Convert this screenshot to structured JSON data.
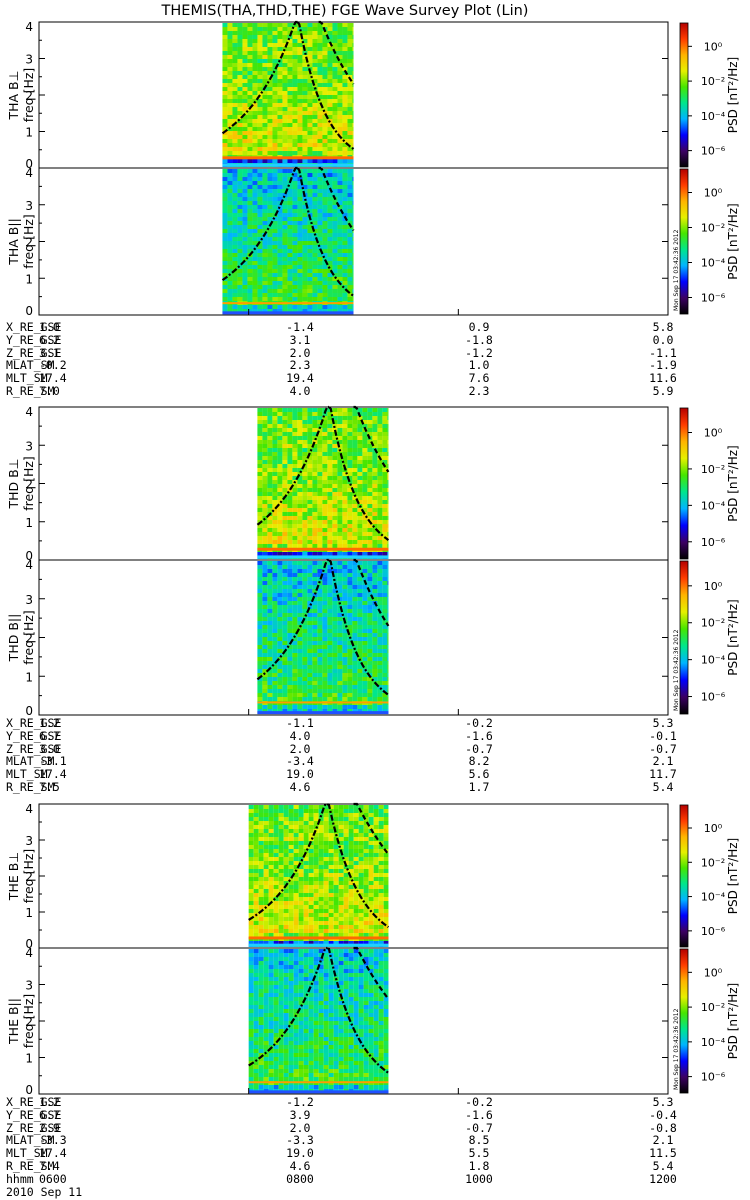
{
  "title": "THEMIS(THA,THD,THE) FGE Wave Survey Plot (Lin)",
  "colorbar": {
    "label": "PSD [nT²/Hz]",
    "ticks": [
      "10⁰",
      "10⁻²",
      "10⁻⁴",
      "10⁻⁶"
    ],
    "scale": "log",
    "range": [
      -7,
      1.4
    ],
    "colors": [
      "#000000",
      "#3c0064",
      "#0000ff",
      "#00b4ff",
      "#00e68c",
      "#46e600",
      "#e6f000",
      "#ffb400",
      "#ff3c00",
      "#b40000"
    ]
  },
  "timestamp": "Mon Sep 17 03:42:36 2012",
  "time_axis": {
    "label": "hhmm",
    "date": "2010 Sep 11",
    "ticks": [
      "0600",
      "0800",
      "1000",
      "1200"
    ]
  },
  "ephemeris_labels": [
    "X_RE_GSE",
    "Y_RE_GSE",
    "Z_RE_GSE",
    "MLAT_SM",
    "MLT_SM",
    "R_RE_SM"
  ],
  "probes": [
    {
      "name": "THA",
      "panels": [
        "THA B⊥",
        "THA B||"
      ],
      "ephemeris": [
        [
          "1.0",
          "-1.4",
          "0.9",
          "5.8"
        ],
        [
          "6.2",
          "3.1",
          "-1.8",
          "0.0"
        ],
        [
          "3.1",
          "2.0",
          "-1.2",
          "-1.1"
        ],
        [
          "-0.2",
          "2.3",
          "1.0",
          "-1.9"
        ],
        [
          "17.4",
          "19.4",
          "7.6",
          "11.6"
        ],
        [
          "7.0",
          "4.0",
          "2.3",
          "5.9"
        ]
      ]
    },
    {
      "name": "THD",
      "panels": [
        "THD B⊥",
        "THD B||"
      ],
      "ephemeris": [
        [
          "1.2",
          "-1.1",
          "-0.2",
          "5.3"
        ],
        [
          "6.7",
          "4.0",
          "-1.6",
          "-0.1"
        ],
        [
          "3.0",
          "2.0",
          "-0.7",
          "-0.7"
        ],
        [
          "-3.1",
          "-3.4",
          "8.2",
          "2.1"
        ],
        [
          "17.4",
          "19.0",
          "5.6",
          "11.7"
        ],
        [
          "7.5",
          "4.6",
          "1.7",
          "5.4"
        ]
      ]
    },
    {
      "name": "THE",
      "panels": [
        "THE B⊥",
        "THE B||"
      ],
      "ephemeris": [
        [
          "1.2",
          "-1.2",
          "-0.2",
          "5.3"
        ],
        [
          "6.7",
          "3.9",
          "-1.6",
          "-0.4"
        ],
        [
          "2.9",
          "2.0",
          "-0.7",
          "-0.8"
        ],
        [
          "-3.3",
          "-3.3",
          "8.5",
          "2.1"
        ],
        [
          "17.4",
          "19.0",
          "5.5",
          "11.5"
        ],
        [
          "7.4",
          "4.6",
          "1.8",
          "5.4"
        ]
      ]
    }
  ],
  "chart_data": {
    "type": "heatmap",
    "title": "THEMIS(THA,THD,THE) FGE Wave Survey Plot (Lin)",
    "xlabel": "hhmm",
    "xticks": [
      "0600",
      "0800",
      "1000",
      "1200"
    ],
    "xlim": [
      "0600",
      "1200"
    ],
    "ylabel": "freq [Hz]",
    "ylim": [
      0,
      4
    ],
    "yticks": [
      0,
      1,
      2,
      3,
      4
    ],
    "zlabel": "PSD [nT²/Hz]",
    "zscale": "log",
    "zlim": [
      1e-07,
      25
    ],
    "panels": [
      {
        "name": "THA B⊥",
        "data_start": "0745",
        "data_end": "0900",
        "line_fc_start_hz": 0.95,
        "line_fc_end_hz": 0.52,
        "line_cusp": "0828",
        "line2_fc_start_hz": 2.3
      },
      {
        "name": "THA B||",
        "data_start": "0745",
        "data_end": "0900",
        "line_fc_start_hz": 0.95,
        "line_fc_end_hz": 0.52,
        "line_cusp": "0828",
        "line2_fc_start_hz": 2.3
      },
      {
        "name": "THD B⊥",
        "data_start": "0805",
        "data_end": "0920",
        "line_fc_start_hz": 0.92,
        "line_fc_end_hz": 0.52,
        "line_cusp": "0846",
        "line2_fc_start_hz": 2.3
      },
      {
        "name": "THD B||",
        "data_start": "0805",
        "data_end": "0920",
        "line_fc_start_hz": 0.92,
        "line_fc_end_hz": 0.52,
        "line_cusp": "0846",
        "line2_fc_start_hz": 2.3
      },
      {
        "name": "THE B⊥",
        "data_start": "0800",
        "data_end": "0920",
        "line_fc_start_hz": 0.78,
        "line_fc_end_hz": 0.58,
        "line_cusp": "0845",
        "line2_fc_start_hz": 2.6
      },
      {
        "name": "THE B||",
        "data_start": "0800",
        "data_end": "0920",
        "line_fc_start_hz": 0.78,
        "line_fc_end_hz": 0.58,
        "line_cusp": "0845",
        "line2_fc_start_hz": 2.6
      }
    ]
  }
}
